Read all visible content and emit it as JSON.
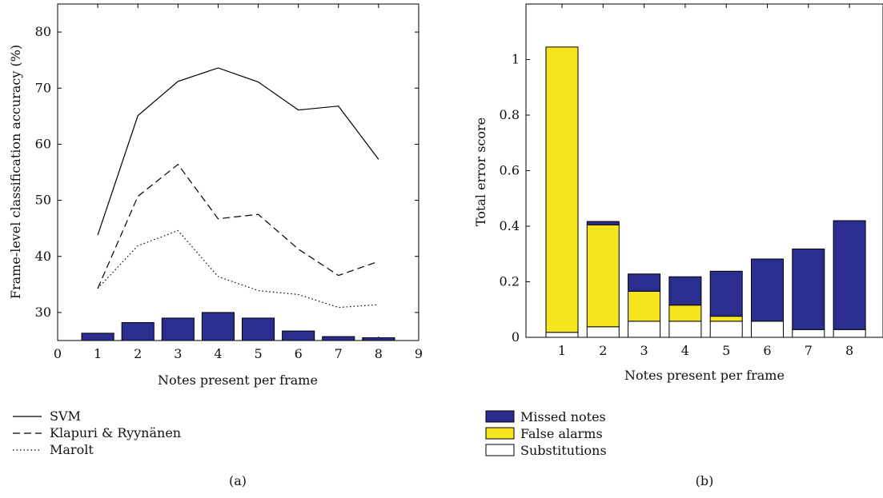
{
  "chart_data": [
    {
      "type": "line",
      "caption": "(a)",
      "xlabel": "Notes present per frame",
      "ylabel": "Frame-level classification accuracy (%)",
      "xlim": [
        0,
        9
      ],
      "ylim": [
        25,
        85
      ],
      "x_ticks": [
        "0",
        "1",
        "2",
        "3",
        "4",
        "5",
        "6",
        "7",
        "8",
        "9"
      ],
      "y_ticks": [
        "30",
        "40",
        "50",
        "60",
        "70",
        "80"
      ],
      "x": [
        1,
        2,
        3,
        4,
        5,
        6,
        7,
        8
      ],
      "series": [
        {
          "name": "SVM",
          "style": "solid",
          "values": [
            43.8,
            65.1,
            71.2,
            73.6,
            71.1,
            66.1,
            66.8,
            57.3
          ]
        },
        {
          "name": "Klapuri & Ryynänen",
          "style": "dashed",
          "values": [
            34.3,
            50.7,
            56.4,
            46.7,
            47.5,
            41.3,
            36.6,
            39.1
          ]
        },
        {
          "name": "Marolt",
          "style": "dotted",
          "values": [
            34.3,
            41.9,
            44.6,
            36.4,
            33.9,
            33.2,
            30.9,
            31.4
          ]
        }
      ],
      "bars": {
        "color": "#2b2e8e",
        "values": [
          26.3,
          28.2,
          29.0,
          30.0,
          29.0,
          26.7,
          25.7,
          25.5
        ]
      },
      "legend_position": "below"
    },
    {
      "type": "bar",
      "stacked": true,
      "caption": "(b)",
      "xlabel": "Notes present per frame",
      "ylabel": "Total error score",
      "ylim": [
        0,
        1.2
      ],
      "categories": [
        "1",
        "2",
        "3",
        "4",
        "5",
        "6",
        "7",
        "8"
      ],
      "y_ticks": [
        "0",
        "0.2",
        "0.4",
        "0.6",
        "0.8",
        "1"
      ],
      "series": [
        {
          "name": "Substitutions",
          "color": "#ffffff",
          "values": [
            0.018,
            0.038,
            0.058,
            0.058,
            0.058,
            0.058,
            0.028,
            0.028
          ]
        },
        {
          "name": "False alarms",
          "color": "#f5e51e",
          "values": [
            1.027,
            0.367,
            0.108,
            0.058,
            0.018,
            0.0,
            0.0,
            0.0
          ]
        },
        {
          "name": "Missed notes",
          "color": "#2b2e8e",
          "values": [
            0.0,
            0.012,
            0.062,
            0.102,
            0.162,
            0.224,
            0.29,
            0.392
          ]
        }
      ],
      "legend_order": [
        "Missed notes",
        "False alarms",
        "Substitutions"
      ],
      "legend_position": "below"
    }
  ]
}
